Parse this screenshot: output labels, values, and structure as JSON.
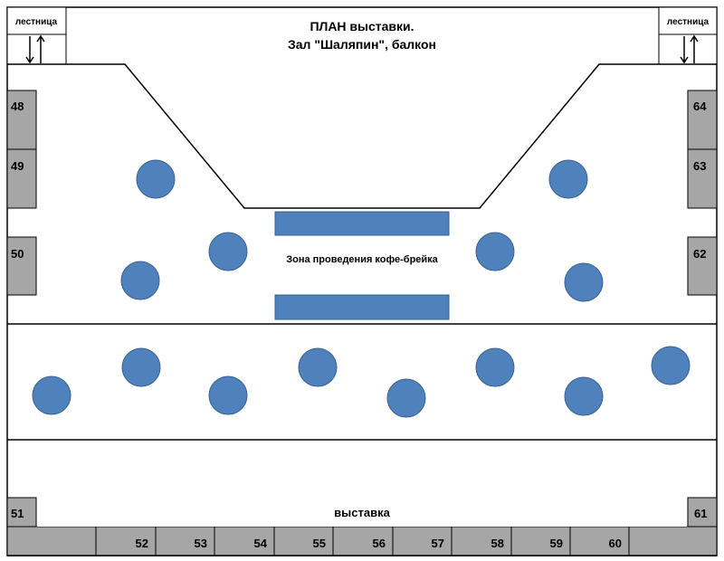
{
  "title": {
    "line1": "ПЛАН выставки.",
    "line2": "Зал \"Шаляпин\", балкон"
  },
  "stairs": {
    "left_label": "лестница",
    "right_label": "лестница"
  },
  "coffee_zone_label": "Зона проведения кофе-брейка",
  "exhibition_label": "выставка",
  "booths_left": [
    "48",
    "49",
    "50"
  ],
  "booths_right": [
    "64",
    "63",
    "62"
  ],
  "booth_bottom_left": "51",
  "booth_bottom_right": "61",
  "booths_bottom": [
    "52",
    "53",
    "54",
    "55",
    "56",
    "57",
    "58",
    "59",
    "60"
  ],
  "colors": {
    "booth": "#a6a6a6",
    "table": "#4f81bd"
  }
}
